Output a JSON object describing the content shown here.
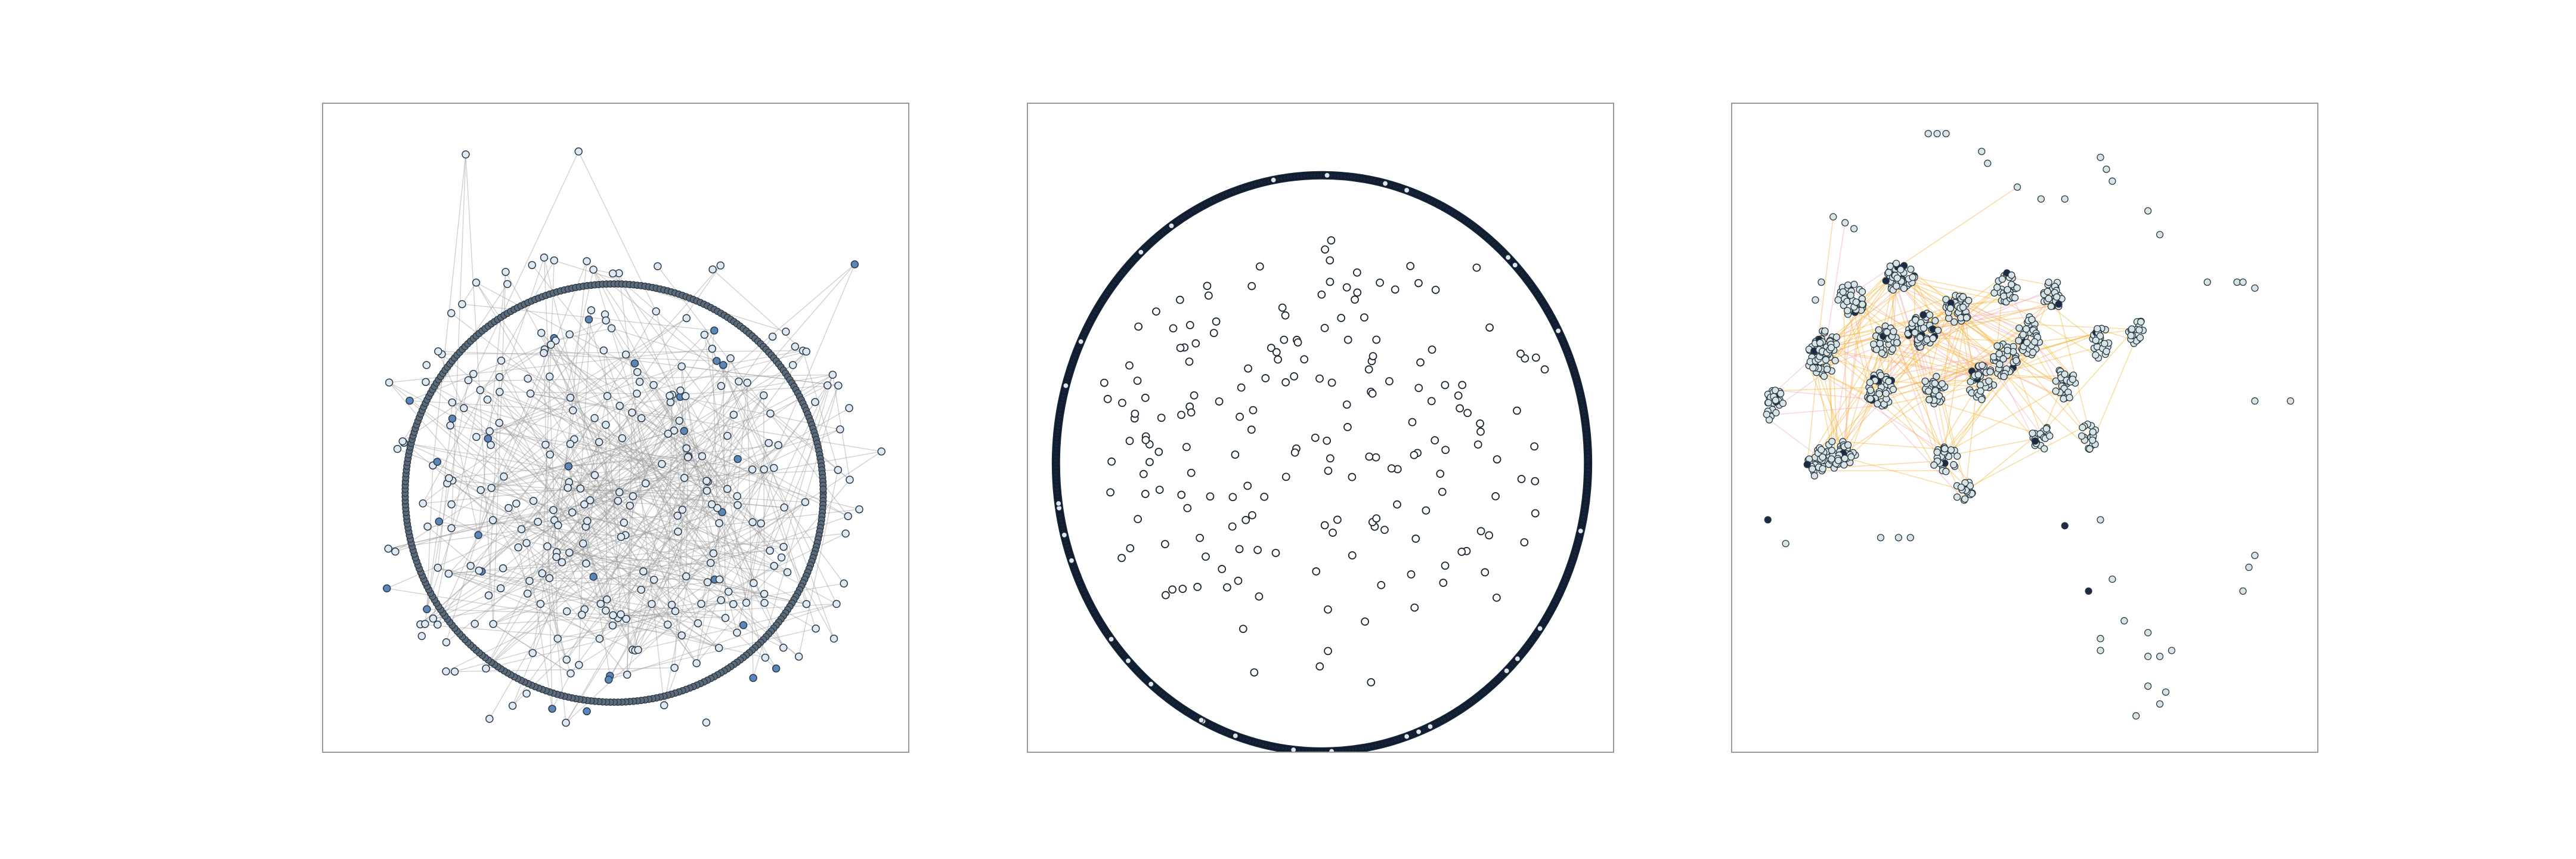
{
  "figure": {
    "panels": [
      {
        "layout": "circular-ring-with-scatter",
        "ring_node_fill": "#5b6b7a",
        "inner_node_fill": "#dfe9f3",
        "highlight_fill": "#5a86b8",
        "edge_color": "#9a9a9a"
      },
      {
        "layout": "dense-ring-with-sparse-interior",
        "ring_color": "#16243a",
        "node_fill": "#ffffff",
        "node_stroke": "#1b2430"
      },
      {
        "layout": "clustered-force-directed",
        "node_fill": "#d9e4e6",
        "node_stroke": "#2a3a44",
        "highlight_fill": "#1c2a44",
        "edge_color_primary": "#f4b33a",
        "edge_color_secondary": "#f3a6b8"
      }
    ]
  }
}
